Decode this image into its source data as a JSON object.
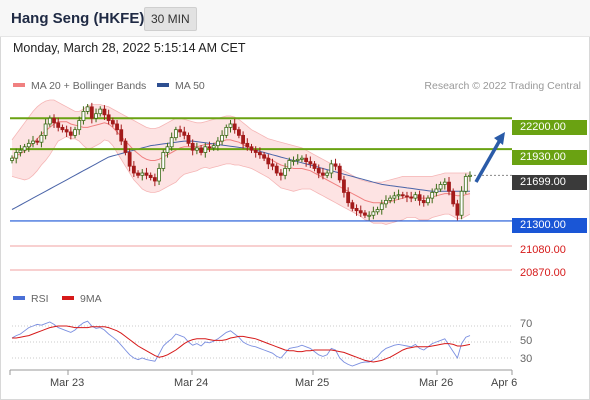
{
  "header": {
    "title": "Hang Seng (HKFE)",
    "timeframe": "30 MIN"
  },
  "datetime": "Monday, March 28, 2022 5:15:14 AM CET",
  "legend": {
    "ma20": "MA 20 + Bollinger Bands",
    "ma50": "MA 50",
    "copyright": "Research © 2022 Trading Central"
  },
  "colors": {
    "resistance": "#6aa212",
    "support": "#1a56d6",
    "target": "#d61a1a",
    "ma20": "#f08080",
    "ma50": "#4a64a8",
    "bollinger_fill": "#fde3e3",
    "arrow": "#2a5ba8",
    "candle_up": "#3c6b17",
    "candle_down": "#a31b1b"
  },
  "chart_data": [
    {
      "type": "candlestick",
      "y_range": [
        20800,
        22360
      ],
      "x_ticks": [
        "Mar 23",
        "Mar 24",
        "Mar 25",
        "Mar 26",
        "Apr 6"
      ],
      "levels": [
        {
          "label": "22200.00",
          "value": 22200,
          "kind": "resistance"
        },
        {
          "label": "21930.00",
          "value": 21930,
          "kind": "resistance"
        },
        {
          "label": "21699.00",
          "value": 21699,
          "kind": "last"
        },
        {
          "label": "21300.00",
          "value": 21300,
          "kind": "pivot"
        },
        {
          "label": "21080.00",
          "value": 21080,
          "kind": "target"
        },
        {
          "label": "20870.00",
          "value": 20870,
          "kind": "target"
        }
      ],
      "close": [
        21850,
        21900,
        21920,
        21950,
        21980,
        22000,
        21990,
        22050,
        22150,
        22200,
        22160,
        22120,
        22100,
        22080,
        22050,
        22100,
        22180,
        22260,
        22300,
        22200,
        22240,
        22280,
        22230,
        22180,
        22150,
        22100,
        22000,
        21900,
        21780,
        21720,
        21700,
        21720,
        21700,
        21680,
        21650,
        21760,
        21900,
        21950,
        22030,
        22100,
        22080,
        22050,
        21980,
        21920,
        21940,
        21900,
        21950,
        21940,
        21960,
        22000,
        22050,
        22120,
        22150,
        22100,
        22050,
        21980,
        21950,
        21920,
        21900,
        21880,
        21850,
        21800,
        21780,
        21720,
        21700,
        21760,
        21830,
        21830,
        21840,
        21850,
        21820,
        21800,
        21760,
        21720,
        21700,
        21720,
        21800,
        21780,
        21660,
        21550,
        21460,
        21410,
        21390,
        21370,
        21350,
        21350,
        21380,
        21400,
        21450,
        21480,
        21500,
        21520,
        21530,
        21520,
        21510,
        21500,
        21530,
        21480,
        21460,
        21500,
        21550,
        21580,
        21620,
        21640,
        21560,
        21450,
        21350,
        21560,
        21690,
        21700
      ],
      "ma20": [
        21850,
        21870,
        21890,
        21910,
        21940,
        21980,
        22020,
        22060,
        22090,
        22120,
        22150,
        22170,
        22170,
        22170,
        22150,
        22140,
        22130,
        22120,
        22120,
        22130,
        22140,
        22150,
        22160,
        22150,
        22120,
        22080,
        22040,
        22000,
        21960,
        21920,
        21890,
        21860,
        21840,
        21830,
        21830,
        21840,
        21860,
        21880,
        21900,
        21920,
        21940,
        21950,
        21950,
        21950,
        21950,
        21960,
        21970,
        21970,
        21980,
        21990,
        22000,
        22010,
        22010,
        22000,
        21990,
        21970,
        21950,
        21930,
        21910,
        21890,
        21870,
        21850,
        21830,
        21810,
        21790,
        21780,
        21770,
        21760,
        21760,
        21760,
        21750,
        21740,
        21720,
        21700,
        21680,
        21660,
        21640,
        21620,
        21600,
        21580,
        21560,
        21540,
        21520,
        21500,
        21480,
        21470,
        21460,
        21460,
        21460,
        21460,
        21470,
        21480,
        21490,
        21500,
        21510,
        21510,
        21510,
        21500,
        21500,
        21500,
        21510,
        21520,
        21530,
        21540,
        21540,
        21530,
        21520,
        21520,
        21530,
        21540
      ],
      "bb_upper": [
        22010,
        22060,
        22110,
        22160,
        22210,
        22260,
        22300,
        22330,
        22350,
        22360,
        22360,
        22340,
        22320,
        22300,
        22280,
        22260,
        22260,
        22280,
        22310,
        22320,
        22320,
        22320,
        22310,
        22300,
        22280,
        22260,
        22240,
        22220,
        22200,
        22180,
        22160,
        22140,
        22120,
        22110,
        22110,
        22120,
        22140,
        22160,
        22180,
        22200,
        22200,
        22190,
        22180,
        22170,
        22160,
        22160,
        22170,
        22180,
        22190,
        22200,
        22210,
        22220,
        22220,
        22210,
        22190,
        22160,
        22130,
        22100,
        22080,
        22060,
        22040,
        22020,
        22010,
        22000,
        21990,
        21980,
        21970,
        21960,
        21950,
        21940,
        21920,
        21900,
        21880,
        21860,
        21840,
        21820,
        21800,
        21780,
        21760,
        21740,
        21720,
        21700,
        21680,
        21660,
        21650,
        21640,
        21640,
        21640,
        21640,
        21650,
        21660,
        21670,
        21680,
        21690,
        21690,
        21690,
        21690,
        21690,
        21690,
        21690,
        21690,
        21700,
        21710,
        21720,
        21720,
        21720,
        21720,
        21720,
        21720,
        21720
      ],
      "bb_lower": [
        21690,
        21680,
        21670,
        21660,
        21670,
        21700,
        21740,
        21790,
        21830,
        21880,
        21940,
        22000,
        22020,
        22040,
        22020,
        22020,
        22000,
        21960,
        21930,
        21940,
        21960,
        21980,
        22010,
        22000,
        21960,
        21900,
        21840,
        21780,
        21720,
        21660,
        21620,
        21580,
        21560,
        21550,
        21550,
        21560,
        21580,
        21600,
        21620,
        21640,
        21680,
        21710,
        21720,
        21730,
        21740,
        21760,
        21770,
        21760,
        21770,
        21780,
        21790,
        21800,
        21800,
        21790,
        21790,
        21780,
        21770,
        21760,
        21740,
        21720,
        21700,
        21680,
        21650,
        21620,
        21590,
        21580,
        21570,
        21560,
        21570,
        21580,
        21580,
        21580,
        21560,
        21540,
        21520,
        21500,
        21480,
        21460,
        21440,
        21420,
        21400,
        21380,
        21360,
        21340,
        21310,
        21300,
        21280,
        21280,
        21280,
        21270,
        21280,
        21290,
        21300,
        21310,
        21330,
        21330,
        21330,
        21310,
        21310,
        21310,
        21330,
        21340,
        21350,
        21360,
        21360,
        21340,
        21320,
        21320,
        21340,
        21360
      ],
      "ma50": [
        21400,
        21420,
        21440,
        21460,
        21480,
        21500,
        21520,
        21540,
        21560,
        21580,
        21600,
        21620,
        21640,
        21660,
        21680,
        21700,
        21720,
        21740,
        21760,
        21780,
        21800,
        21820,
        21840,
        21860,
        21870,
        21880,
        21890,
        21900,
        21910,
        21920,
        21930,
        21940,
        21950,
        21960,
        21965,
        21970,
        21975,
        21980,
        21985,
        21990,
        21995,
        22000,
        22000,
        22000,
        21995,
        21990,
        21985,
        21980,
        21975,
        21970,
        21965,
        21960,
        21955,
        21950,
        21945,
        21940,
        21935,
        21930,
        21920,
        21910,
        21900,
        21890,
        21880,
        21870,
        21860,
        21850,
        21840,
        21830,
        21820,
        21810,
        21800,
        21790,
        21780,
        21770,
        21760,
        21750,
        21740,
        21730,
        21720,
        21710,
        21700,
        21690,
        21680,
        21670,
        21660,
        21650,
        21640,
        21630,
        21620,
        21615,
        21610,
        21605,
        21600,
        21595,
        21590,
        21585,
        21580,
        21575,
        21570,
        21565,
        21560,
        21560,
        21560,
        21560,
        21560,
        21560,
        21560,
        21560,
        21560,
        21560
      ]
    },
    {
      "type": "line",
      "series": [
        {
          "name": "RSI"
        },
        {
          "name": "9MA"
        }
      ],
      "y_range": [
        20,
        85
      ],
      "y_ticks": [
        70,
        50,
        30
      ],
      "rsi": [
        55,
        58,
        60,
        64,
        68,
        70,
        72,
        71,
        73,
        75,
        72,
        68,
        66,
        64,
        62,
        65,
        70,
        74,
        76,
        70,
        67,
        68,
        65,
        60,
        56,
        52,
        46,
        40,
        34,
        30,
        28,
        30,
        28,
        27,
        26,
        35,
        45,
        50,
        54,
        60,
        58,
        56,
        50,
        46,
        48,
        45,
        50,
        49,
        51,
        54,
        58,
        62,
        64,
        60,
        56,
        50,
        47,
        45,
        44,
        42,
        40,
        38,
        36,
        32,
        30,
        36,
        42,
        43,
        44,
        46,
        44,
        42,
        38,
        34,
        32,
        34,
        42,
        40,
        30,
        25,
        22,
        20,
        22,
        24,
        25,
        25,
        28,
        32,
        38,
        42,
        44,
        46,
        47,
        46,
        45,
        44,
        47,
        42,
        40,
        44,
        48,
        50,
        52,
        54,
        46,
        38,
        30,
        48,
        56,
        58
      ],
      "rsi_ma": [
        55,
        55,
        56,
        57,
        58,
        60,
        62,
        64,
        66,
        68,
        69,
        70,
        70,
        70,
        69,
        68,
        68,
        68,
        68,
        69,
        69,
        69,
        69,
        68,
        66,
        64,
        61,
        57,
        53,
        49,
        45,
        42,
        39,
        36,
        33,
        31,
        32,
        34,
        37,
        40,
        44,
        48,
        51,
        53,
        54,
        54,
        54,
        53,
        52,
        52,
        52,
        53,
        55,
        56,
        57,
        57,
        56,
        55,
        54,
        52,
        50,
        48,
        46,
        44,
        42,
        40,
        39,
        39,
        38,
        38,
        39,
        39,
        40,
        40,
        40,
        40,
        40,
        39,
        38,
        37,
        35,
        33,
        31,
        29,
        27,
        26,
        25,
        26,
        27,
        29,
        31,
        34,
        37,
        40,
        42,
        43,
        44,
        44,
        44,
        44,
        45,
        46,
        47,
        48,
        48,
        47,
        45,
        45,
        46,
        47
      ]
    }
  ],
  "right_labels": {
    "r2": "22200.00",
    "r1": "21930.00",
    "last": "21699.00",
    "pivot": "21300.00",
    "s1": "21080.00",
    "s2": "20870.00"
  },
  "rsi_legend": {
    "rsi": "RSI",
    "ma": "9MA"
  },
  "rsi_ticks": {
    "t70": "70",
    "t50": "50",
    "t30": "30"
  },
  "x_labels": {
    "d1": "Mar 23",
    "d2": "Mar 24",
    "d3": "Mar 25",
    "d4": "Mar 26",
    "d5": "Apr 6"
  }
}
